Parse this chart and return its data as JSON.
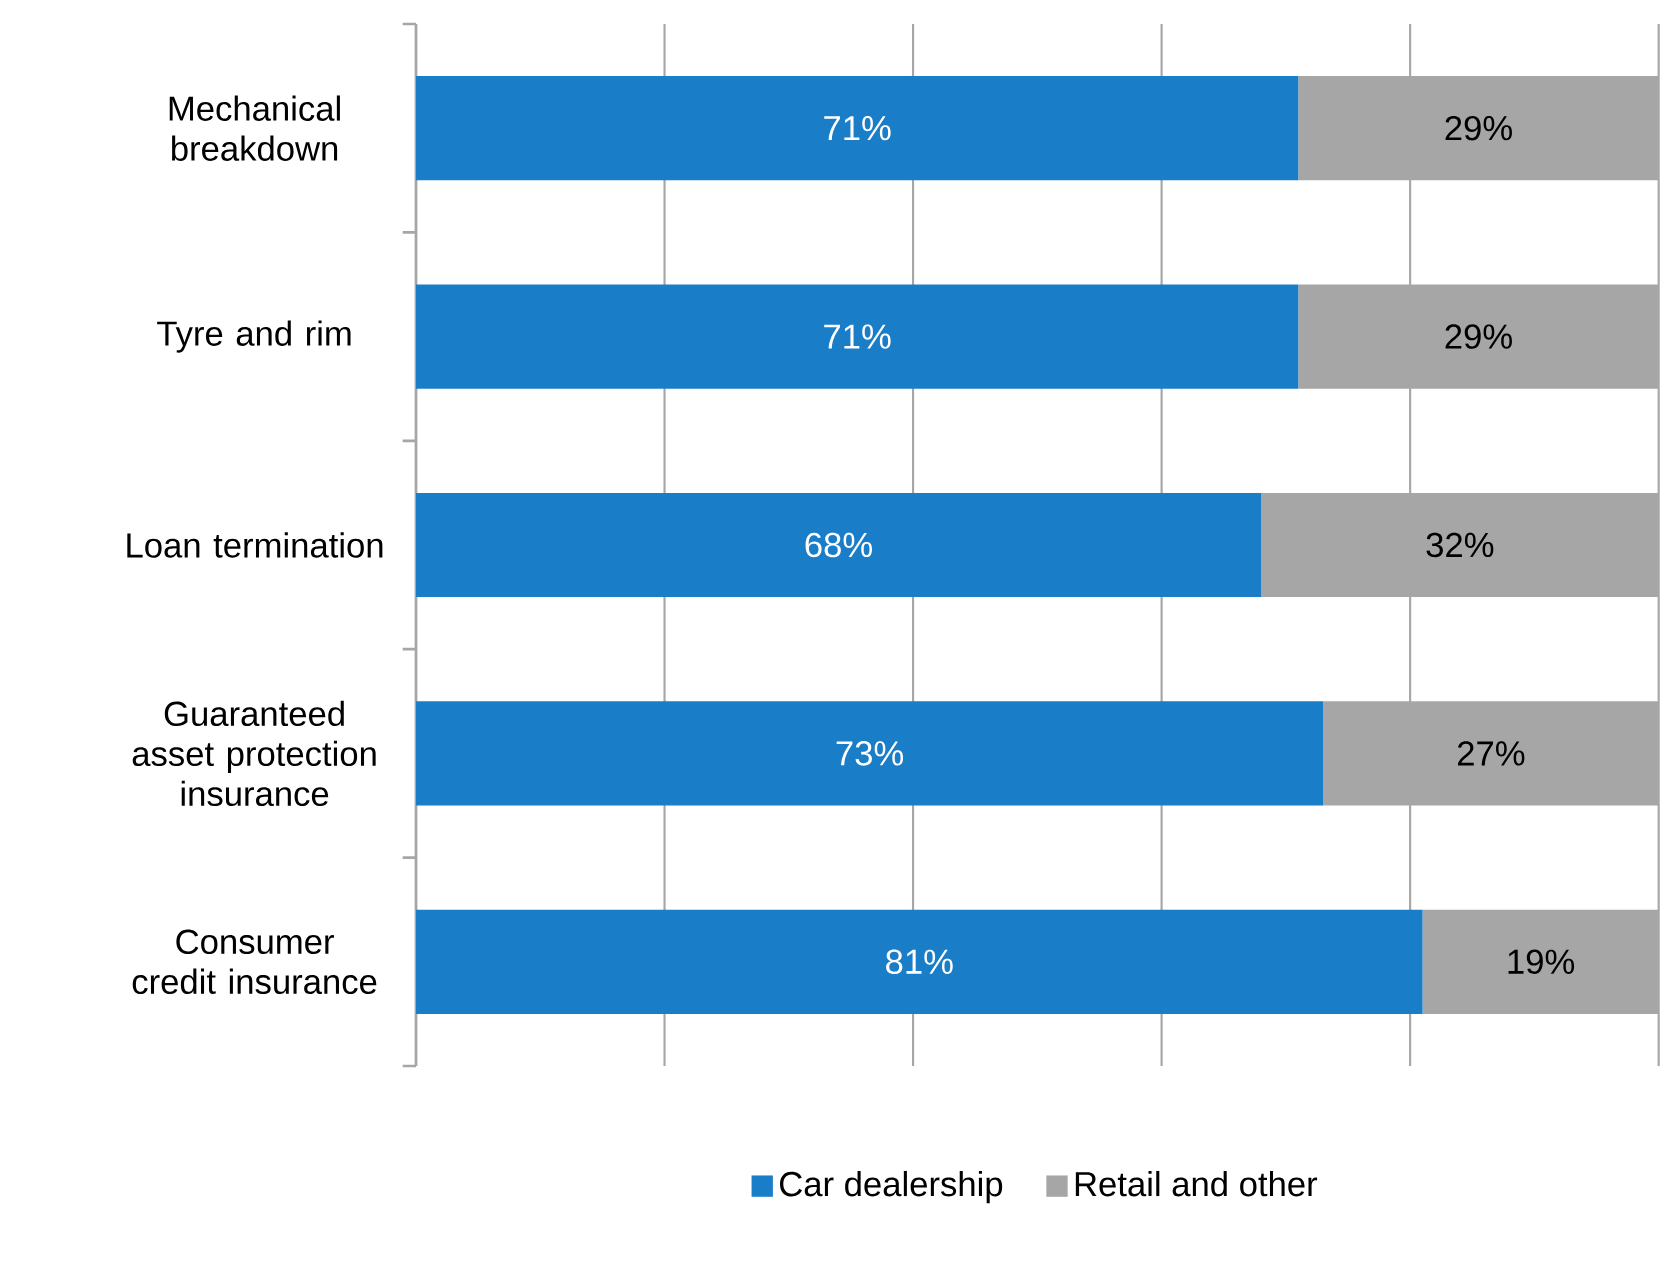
{
  "chart_data": {
    "type": "bar",
    "orientation": "horizontal",
    "stacked": true,
    "categories": [
      "Mechanical breakdown",
      "Tyre and rim",
      "Loan termination",
      "Guaranteed asset protection insurance",
      "Consumer credit insurance"
    ],
    "series": [
      {
        "name": "Car dealership",
        "color": "#1a7dc8",
        "values": [
          71,
          71,
          68,
          73,
          81
        ],
        "value_labels": [
          "71%",
          "71%",
          "68%",
          "73%",
          "81%"
        ]
      },
      {
        "name": "Retail and other",
        "color": "#a6a6a6",
        "values": [
          29,
          29,
          32,
          27,
          19
        ],
        "value_labels": [
          "29%",
          "29%",
          "32%",
          "27%",
          "19%"
        ]
      }
    ],
    "tick_labels": "y",
    "grid": "x",
    "legend": "bottom"
  }
}
